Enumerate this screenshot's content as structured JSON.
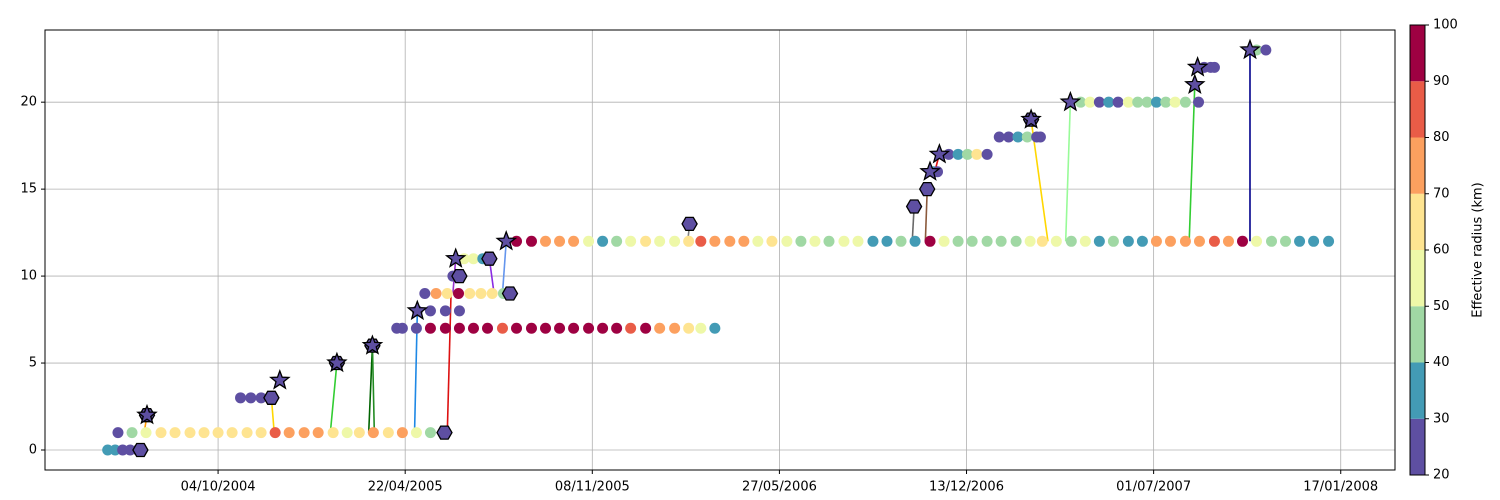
{
  "chart_data": {
    "type": "scatter",
    "xlim": [
      "02/04/2004",
      "15/03/2008"
    ],
    "ylim": [
      -1.15,
      24.15
    ],
    "xticks": [
      "04/10/2004",
      "22/04/2005",
      "08/11/2005",
      "27/05/2006",
      "13/12/2006",
      "01/07/2007",
      "17/01/2008"
    ],
    "yticks": [
      0,
      5,
      10,
      15,
      20
    ],
    "grid": true,
    "colorbar": {
      "label": "Effective radius (km)",
      "lim": [
        20,
        100
      ],
      "ticks": [
        20,
        30,
        40,
        50,
        60,
        70,
        80,
        90,
        100
      ],
      "colors": [
        "#5e4fa2",
        "#439bb5",
        "#a0d8a4",
        "#eef8a8",
        "#fee491",
        "#fca05f",
        "#e95c47",
        "#9e0142"
      ]
    },
    "series": [
      {
        "x": [
          "08/06/2004",
          "16/06/2004",
          "24/06/2004",
          "02/07/2004",
          "10/07/2004"
        ],
        "values": [
          0,
          0,
          0,
          0,
          0
        ],
        "radius": [
          35,
          35,
          25,
          25,
          25
        ]
      },
      {
        "x": [
          "19/06/2004",
          "04/07/2004",
          "19/07/2004",
          "04/08/2004",
          "19/08/2004",
          "04/09/2004",
          "19/09/2004",
          "04/10/2004",
          "19/10/2004",
          "04/11/2004",
          "19/11/2004",
          "04/12/2004",
          "19/12/2004",
          "04/01/2005",
          "19/01/2005",
          "04/02/2005",
          "19/02/2005",
          "04/03/2005",
          "19/03/2005",
          "04/04/2005",
          "19/04/2005",
          "04/05/2005",
          "19/05/2005",
          "03/06/2005"
        ],
        "values": [
          1,
          1,
          1,
          1,
          1,
          1,
          1,
          1,
          1,
          1,
          1,
          1,
          1,
          1,
          1,
          1,
          1,
          1,
          1,
          1,
          1,
          1,
          1,
          1
        ],
        "radius": [
          25,
          45,
          58,
          62,
          62,
          62,
          62,
          65,
          62,
          62,
          62,
          85,
          75,
          72,
          78,
          62,
          58,
          65,
          72,
          62,
          75,
          58,
          45,
          25
        ]
      },
      {
        "x": [
          "28/10/2004",
          "08/11/2004",
          "19/11/2004",
          "30/11/2004"
        ],
        "values": [
          3,
          3,
          3,
          3
        ],
        "radius": [
          25,
          25,
          25,
          25
        ]
      },
      {
        "x": [
          "13/04/2005",
          "19/04/2005",
          "04/05/2005",
          "19/05/2005",
          "04/06/2005",
          "19/06/2005",
          "04/07/2005",
          "19/07/2005",
          "04/08/2005",
          "19/08/2005",
          "04/09/2005",
          "19/09/2005",
          "04/10/2005",
          "19/10/2005",
          "04/11/2005",
          "19/11/2005",
          "04/12/2005",
          "19/12/2005",
          "04/01/2006",
          "19/01/2006",
          "04/02/2006",
          "19/02/2006",
          "04/03/2006",
          "19/03/2006"
        ],
        "values": [
          7,
          7,
          7,
          7,
          7,
          7,
          7,
          7,
          7,
          7,
          7,
          7,
          7,
          7,
          7,
          7,
          7,
          7,
          7,
          7,
          7,
          7,
          7,
          7
        ],
        "radius": [
          25,
          25,
          25,
          92,
          95,
          95,
          92,
          95,
          85,
          95,
          95,
          92,
          95,
          95,
          95,
          92,
          95,
          85,
          95,
          75,
          72,
          62,
          55,
          35
        ]
      },
      {
        "x": [
          "05/05/2005",
          "19/05/2005",
          "04/06/2005",
          "19/06/2005"
        ],
        "values": [
          8,
          8,
          8,
          8
        ],
        "radius": [
          25,
          25,
          25,
          25
        ]
      },
      {
        "x": [
          "13/05/2005",
          "25/05/2005",
          "06/06/2005",
          "18/06/2005",
          "30/06/2005",
          "12/07/2005",
          "24/07/2005",
          "05/08/2005",
          "12/08/2005"
        ],
        "values": [
          9,
          9,
          9,
          9,
          9,
          9,
          9,
          9,
          9
        ],
        "radius": [
          25,
          75,
          62,
          92,
          62,
          62,
          62,
          45,
          35
        ]
      },
      {
        "x": [
          "12/06/2005",
          "19/06/2005"
        ],
        "values": [
          10,
          10
        ],
        "radius": [
          25,
          25
        ]
      },
      {
        "x": [
          "24/06/2005",
          "04/07/2005",
          "14/07/2005",
          "21/07/2005"
        ],
        "values": [
          11,
          11,
          11,
          11
        ],
        "radius": [
          55,
          55,
          30,
          25
        ]
      },
      {
        "x": [
          "19/08/2005",
          "04/09/2005",
          "19/09/2005",
          "04/10/2005",
          "19/10/2005",
          "04/11/2005",
          "19/11/2005",
          "04/12/2005",
          "19/12/2005",
          "04/01/2006",
          "19/01/2006",
          "04/02/2006",
          "19/02/2006",
          "04/03/2006",
          "19/03/2006",
          "04/04/2006",
          "19/04/2006",
          "04/05/2006",
          "19/05/2006",
          "04/06/2006",
          "19/06/2006",
          "04/07/2006",
          "19/07/2006",
          "04/08/2006",
          "19/08/2006",
          "04/09/2006",
          "19/09/2006",
          "04/10/2006",
          "19/10/2006",
          "04/11/2006",
          "19/11/2006",
          "04/12/2006",
          "19/12/2006",
          "04/01/2007",
          "19/01/2007",
          "04/02/2007",
          "19/02/2007",
          "04/03/2007",
          "19/03/2007",
          "04/04/2007",
          "19/04/2007",
          "04/05/2007",
          "19/05/2007",
          "04/06/2007",
          "19/06/2007",
          "04/07/2007",
          "19/07/2007",
          "04/08/2007",
          "19/08/2007",
          "04/09/2007",
          "19/09/2007",
          "04/10/2007",
          "19/10/2007",
          "04/11/2007",
          "19/11/2007",
          "04/12/2007",
          "19/12/2007",
          "04/01/2008"
        ],
        "values": [
          12,
          12,
          12,
          12,
          12,
          12,
          12,
          12,
          12,
          12,
          12,
          12,
          12,
          12,
          12,
          12,
          12,
          12,
          12,
          12,
          12,
          12,
          12,
          12,
          12,
          12,
          12,
          12,
          12,
          12,
          12,
          12,
          12,
          12,
          12,
          12,
          12,
          12,
          12,
          12,
          12,
          12,
          12,
          12,
          12,
          12,
          12,
          12,
          12,
          12,
          12,
          12,
          12,
          12,
          12,
          12,
          12,
          12
        ],
        "radius": [
          92,
          95,
          75,
          78,
          72,
          58,
          38,
          45,
          55,
          62,
          55,
          58,
          65,
          85,
          75,
          72,
          78,
          55,
          62,
          55,
          45,
          55,
          45,
          58,
          52,
          35,
          38,
          45,
          35,
          92,
          55,
          45,
          42,
          45,
          42,
          45,
          55,
          62,
          55,
          48,
          55,
          38,
          45,
          35,
          38,
          75,
          72,
          78,
          75,
          85,
          78,
          95,
          55,
          45,
          42,
          38,
          35,
          35
        ]
      },
      {
        "x": [
          "08/11/2006",
          "12/11/2006"
        ],
        "values": [
          16,
          16
        ],
        "radius": [
          30,
          25
        ]
      },
      {
        "x": [
          "24/11/2006",
          "04/12/2006",
          "14/12/2006",
          "24/12/2006",
          "04/01/2007"
        ],
        "values": [
          17,
          17,
          17,
          17,
          17
        ],
        "radius": [
          25,
          30,
          40,
          60,
          25
        ]
      },
      {
        "x": [
          "17/01/2007",
          "27/01/2007",
          "06/02/2007",
          "16/02/2007",
          "26/02/2007",
          "02/03/2007"
        ],
        "values": [
          18,
          18,
          18,
          18,
          18,
          18
        ],
        "radius": [
          25,
          25,
          30,
          40,
          25,
          25
        ]
      },
      {
        "x": [
          "14/04/2007",
          "24/04/2007",
          "04/05/2007",
          "14/05/2007",
          "24/05/2007",
          "04/06/2007",
          "14/06/2007",
          "24/06/2007",
          "04/07/2007",
          "14/07/2007",
          "24/07/2007",
          "04/08/2007",
          "18/08/2007"
        ],
        "values": [
          20,
          20,
          20,
          20,
          20,
          20,
          20,
          20,
          20,
          20,
          20,
          20,
          20
        ],
        "radius": [
          45,
          50,
          25,
          30,
          25,
          55,
          45,
          40,
          35,
          45,
          50,
          45,
          25
        ]
      },
      {
        "x": [
          "24/08/2007",
          "31/08/2007",
          "04/09/2007"
        ],
        "values": [
          22,
          22,
          22
        ],
        "radius": [
          25,
          25,
          25
        ]
      },
      {
        "x": [
          "19/10/2007",
          "29/10/2007"
        ],
        "values": [
          23,
          23
        ],
        "radius": [
          45,
          25
        ]
      }
    ],
    "links": [
      {
        "color": "#ff9900",
        "x": [
          "17/07/2004",
          "20/07/2004"
        ],
        "values": [
          1,
          2
        ]
      },
      {
        "color": "#ffd700",
        "x": [
          "30/11/2004",
          "03/12/2004"
        ],
        "values": [
          3,
          1
        ]
      },
      {
        "color": "#32cd32",
        "x": [
          "01/02/2005",
          "08/02/2005"
        ],
        "values": [
          1,
          5
        ]
      },
      {
        "color": "#006400",
        "x": [
          "14/03/2005",
          "18/03/2005"
        ],
        "values": [
          1,
          6
        ]
      },
      {
        "color": "#228b22",
        "x": [
          "18/03/2005",
          "20/03/2005"
        ],
        "values": [
          6,
          1
        ]
      },
      {
        "color": "#1e88e5",
        "x": [
          "02/05/2005",
          "05/05/2005"
        ],
        "values": [
          1,
          8
        ]
      },
      {
        "color": "#dd1111",
        "x": [
          "06/06/2005",
          "10/06/2005"
        ],
        "values": [
          1,
          9
        ]
      },
      {
        "color": "#9932cc",
        "x": [
          "12/06/2005",
          "15/06/2005"
        ],
        "values": [
          9,
          11
        ]
      },
      {
        "color": "#8a2be2",
        "x": [
          "21/07/2005",
          "26/07/2005"
        ],
        "values": [
          11,
          9
        ]
      },
      {
        "color": "#6495ed",
        "x": [
          "04/08/2005",
          "08/08/2005"
        ],
        "values": [
          9,
          12
        ]
      },
      {
        "color": "#808080",
        "x": [
          "18/02/2006",
          "20/02/2006"
        ],
        "values": [
          12,
          13
        ]
      },
      {
        "color": "#696969",
        "x": [
          "16/10/2006",
          "18/10/2006"
        ],
        "values": [
          12,
          14
        ]
      },
      {
        "color": "#8b5a3c",
        "x": [
          "30/10/2006",
          "01/11/2006"
        ],
        "values": [
          12,
          15
        ]
      },
      {
        "color": "#dd1111",
        "x": [
          "09/11/2006",
          "14/11/2006"
        ],
        "values": [
          16,
          17
        ]
      },
      {
        "color": "#ffd700",
        "x": [
          "10/03/2007",
          "20/02/2007"
        ],
        "values": [
          12,
          19
        ]
      },
      {
        "color": "#98fb98",
        "x": [
          "29/03/2007",
          "03/04/2007"
        ],
        "values": [
          12,
          20
        ]
      },
      {
        "color": "#32cd32",
        "x": [
          "08/08/2007",
          "14/08/2007"
        ],
        "values": [
          12,
          21
        ]
      },
      {
        "color": "#00008b",
        "x": [
          "12/10/2007",
          "12/10/2007"
        ],
        "values": [
          12,
          23
        ]
      }
    ],
    "marker_color": "#5e4fa2",
    "markers": [
      {
        "shape": "hexagon",
        "x": [
          "13/07/2004",
          "20/07/2004",
          "30/11/2004",
          "08/02/2005",
          "18/03/2005",
          "03/06/2005",
          "19/06/2005",
          "21/07/2005",
          "12/08/2005",
          "20/02/2006",
          "18/10/2006",
          "01/11/2006",
          "20/02/2007"
        ],
        "values": [
          0,
          2,
          3,
          5,
          6,
          1,
          10,
          11,
          9,
          13,
          14,
          15,
          19
        ]
      },
      {
        "shape": "star",
        "x": [
          "20/07/2004",
          "09/12/2004",
          "08/02/2005",
          "18/03/2005",
          "05/05/2005",
          "15/06/2005",
          "08/08/2005",
          "04/11/2006",
          "14/11/2006",
          "20/02/2007",
          "03/04/2007",
          "14/08/2007",
          "17/08/2007",
          "12/10/2007"
        ],
        "values": [
          2,
          4,
          5,
          6,
          8,
          11,
          12,
          16,
          17,
          19,
          20,
          21,
          22,
          23
        ]
      }
    ]
  }
}
